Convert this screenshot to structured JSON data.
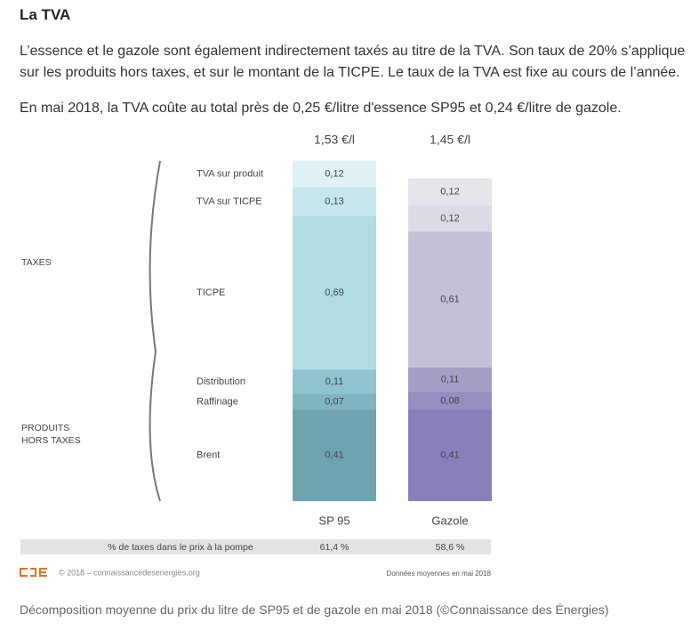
{
  "heading": "La TVA",
  "paragraphs": [
    "L’essence et le gazole sont également indirectement taxés au titre de la TVA. Son taux de 20% s’applique sur les produits hors taxes, et sur le montant de la TICPE. Le taux de la TVA est fixe au cours de l’année.",
    "En mai 2018, la TVA coûte au total près de 0,25 €/litre d'essence SP95 et 0,24 €/litre de gazole."
  ],
  "chart_data": {
    "type": "stacked-bar",
    "categories": [
      "SP 95",
      "Gazole"
    ],
    "totals": [
      1.53,
      1.45
    ],
    "total_labels": [
      "1,53 €/l",
      "1,45 €/l"
    ],
    "groups": [
      "TAXES",
      "PRODUITS HORS TAXES"
    ],
    "series": [
      {
        "name": "Brent",
        "colors": [
          "#6fa3b0",
          "#8880bb"
        ],
        "values": [
          0.41,
          0.41
        ],
        "value_labels": [
          "0,41",
          "0,41"
        ]
      },
      {
        "name": "Raffinage",
        "colors": [
          "#80b4c0",
          "#958fc2"
        ],
        "values": [
          0.07,
          0.08
        ],
        "value_labels": [
          "0,07",
          "0,08"
        ]
      },
      {
        "name": "Distribution",
        "colors": [
          "#8fc3cf",
          "#a49fc6"
        ],
        "values": [
          0.11,
          0.11
        ],
        "value_labels": [
          "0,11",
          "0,11"
        ]
      },
      {
        "name": "TICPE",
        "colors": [
          "#b0dce4",
          "#c3c0da"
        ],
        "values": [
          0.69,
          0.61
        ],
        "value_labels": [
          "0,69",
          "0,61"
        ]
      },
      {
        "name": "TVA sur TICPE",
        "colors": [
          "#c5e7ed",
          "#dcdae5"
        ],
        "values": [
          0.13,
          0.12
        ],
        "value_labels": [
          "0,13",
          "0,12"
        ]
      },
      {
        "name": "TVA sur produit",
        "colors": [
          "#dff3f6",
          "#e6e5ec"
        ],
        "values": [
          0.12,
          0.12
        ],
        "value_labels": [
          "0,12",
          "0,12"
        ]
      }
    ],
    "tax_share": {
      "label": "% de taxes dans le prix à la pompe",
      "values": [
        61.4,
        58.6
      ],
      "value_labels": [
        "61,4 %",
        "58,6 %"
      ]
    },
    "source": "© 2018 – connaissancedesenergies.org",
    "note": "Données moyennes en mai 2018"
  },
  "caption": "Décomposition moyenne du prix du litre de SP95 et de gazole en mai 2018 (©Connaissance des Énergies)"
}
